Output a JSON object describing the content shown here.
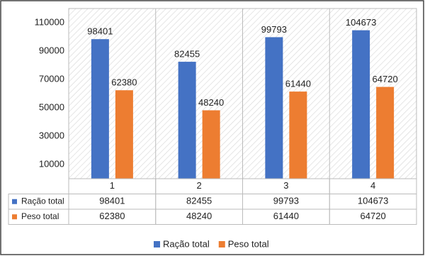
{
  "chart_data": {
    "type": "bar",
    "categories": [
      "1",
      "2",
      "3",
      "4"
    ],
    "series": [
      {
        "name": "Ração total",
        "color": "#4472c4",
        "values": [
          98401,
          82455,
          99793,
          104673
        ]
      },
      {
        "name": "Peso total",
        "color": "#ed7d31",
        "values": [
          62380,
          48240,
          61440,
          64720
        ]
      }
    ],
    "ylim": [
      0,
      120000
    ],
    "yticks": [
      10000,
      30000,
      50000,
      70000,
      90000,
      110000
    ],
    "data_table": true,
    "legend": "bottom"
  }
}
